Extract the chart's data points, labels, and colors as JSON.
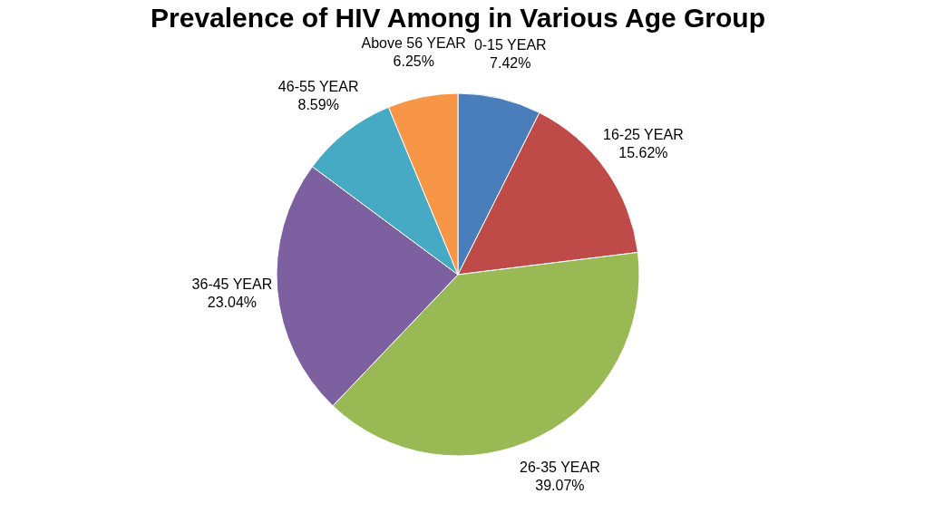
{
  "chart_data": {
    "type": "pie",
    "title": "Prevalence of HIV Among in Various Age Group",
    "categories": [
      "0-15 YEAR",
      "16-25 YEAR",
      "26-35 YEAR",
      "36-45 YEAR",
      "46-55 YEAR",
      "Above 56 YEAR"
    ],
    "values": [
      7.42,
      15.62,
      39.07,
      23.04,
      8.59,
      6.25
    ],
    "value_labels": [
      "7.42%",
      "15.62%",
      "39.07%",
      "23.04%",
      "8.59%",
      "6.25%"
    ],
    "colors": [
      "#4a7ebb",
      "#be4b48",
      "#98b954",
      "#7d60a0",
      "#46aac5",
      "#f79646"
    ],
    "legend": false
  }
}
